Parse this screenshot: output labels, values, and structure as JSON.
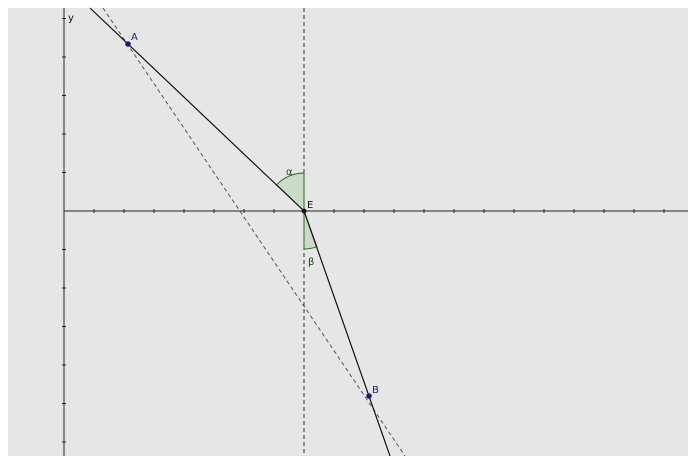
{
  "axis": {
    "y_label": "y"
  },
  "points": [
    {
      "label": "A"
    },
    {
      "label": "B"
    },
    {
      "label": "E"
    }
  ],
  "angles": [
    {
      "label": "α"
    },
    {
      "label": "β"
    }
  ]
}
